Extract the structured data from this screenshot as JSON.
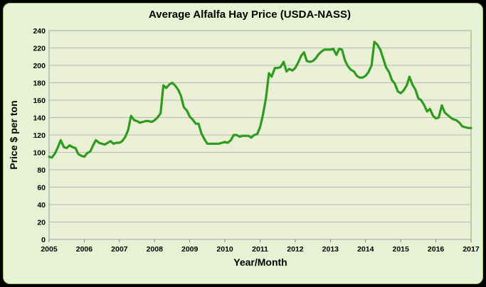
{
  "chart_data": {
    "type": "line",
    "title": "Average Alfalfa Hay Price (USDA-NASS)",
    "xlabel": "Year/Month",
    "ylabel": "Price $ per ton",
    "xlim": [
      2005,
      2017
    ],
    "ylim": [
      0,
      240
    ],
    "x_ticks": [
      "2005",
      "2006",
      "2007",
      "2008",
      "2009",
      "2010",
      "2011",
      "2012",
      "2013",
      "2014",
      "2015",
      "2016",
      "2017"
    ],
    "y_ticks": [
      "0",
      "20",
      "40",
      "60",
      "80",
      "100",
      "120",
      "140",
      "160",
      "180",
      "200",
      "220",
      "240"
    ],
    "grid": true,
    "series_color": "#2e9a1e",
    "series": [
      {
        "x": [
          2005.0,
          2005.08,
          2005.17,
          2005.25,
          2005.33,
          2005.42,
          2005.5,
          2005.58,
          2005.67,
          2005.75,
          2005.83,
          2005.92,
          2006.0,
          2006.08,
          2006.17,
          2006.25,
          2006.33,
          2006.42,
          2006.5,
          2006.58,
          2006.67,
          2006.75,
          2006.83,
          2006.92,
          2007.0,
          2007.08,
          2007.17,
          2007.25,
          2007.33,
          2007.42,
          2007.5,
          2007.58,
          2007.67,
          2007.75,
          2007.83,
          2007.92,
          2008.0,
          2008.08,
          2008.17,
          2008.25,
          2008.33,
          2008.42,
          2008.5,
          2008.58,
          2008.67,
          2008.75,
          2008.83,
          2008.92,
          2009.0,
          2009.08,
          2009.17,
          2009.25,
          2009.33,
          2009.42,
          2009.5,
          2009.58,
          2009.67,
          2009.75,
          2009.83,
          2009.92,
          2010.0,
          2010.08,
          2010.17,
          2010.25,
          2010.33,
          2010.42,
          2010.5,
          2010.58,
          2010.67,
          2010.75,
          2010.83,
          2010.92,
          2011.0,
          2011.08,
          2011.17,
          2011.25,
          2011.33,
          2011.42,
          2011.5,
          2011.58,
          2011.67,
          2011.75,
          2011.83,
          2011.92,
          2012.0,
          2012.08,
          2012.17,
          2012.25,
          2012.33,
          2012.42,
          2012.5,
          2012.58,
          2012.67,
          2012.75,
          2012.83,
          2012.92,
          2013.0,
          2013.08,
          2013.17,
          2013.25,
          2013.33,
          2013.42,
          2013.5,
          2013.58,
          2013.67,
          2013.75,
          2013.83,
          2013.92,
          2014.0,
          2014.08,
          2014.17,
          2014.25,
          2014.33,
          2014.42,
          2014.5,
          2014.58,
          2014.67,
          2014.75,
          2014.83,
          2014.92,
          2015.0,
          2015.08,
          2015.17,
          2015.25,
          2015.33,
          2015.42,
          2015.5,
          2015.58,
          2015.67,
          2015.75,
          2015.83,
          2015.92,
          2016.0,
          2016.08,
          2016.17,
          2016.25,
          2016.33,
          2016.42,
          2016.5,
          2016.58,
          2016.67,
          2016.75,
          2016.83,
          2016.92,
          2017.0
        ],
        "values": [
          95,
          94,
          99,
          106,
          114,
          106,
          105,
          108,
          106,
          105,
          98,
          96,
          95,
          99,
          101,
          108,
          114,
          111,
          110,
          109,
          111,
          113,
          110,
          111,
          111,
          113,
          118,
          126,
          142,
          137,
          136,
          134,
          135,
          136,
          136,
          135,
          137,
          140,
          145,
          177,
          174,
          178,
          180,
          177,
          172,
          165,
          152,
          148,
          141,
          138,
          133,
          133,
          122,
          115,
          110,
          110,
          110,
          110,
          110,
          111,
          112,
          111,
          114,
          120,
          120,
          118,
          119,
          119,
          119,
          117,
          120,
          121,
          129,
          143,
          163,
          191,
          187,
          197,
          197,
          198,
          204,
          193,
          196,
          194,
          197,
          203,
          211,
          215,
          205,
          204,
          205,
          208,
          213,
          216,
          218,
          218,
          218,
          219,
          212,
          219,
          218,
          205,
          199,
          195,
          193,
          188,
          186,
          186,
          188,
          192,
          200,
          227,
          224,
          218,
          208,
          198,
          192,
          183,
          179,
          170,
          168,
          171,
          177,
          187,
          178,
          172,
          162,
          160,
          154,
          147,
          150,
          142,
          139,
          140,
          154,
          146,
          143,
          140,
          138,
          137,
          134,
          130,
          129,
          128,
          128
        ]
      }
    ]
  }
}
